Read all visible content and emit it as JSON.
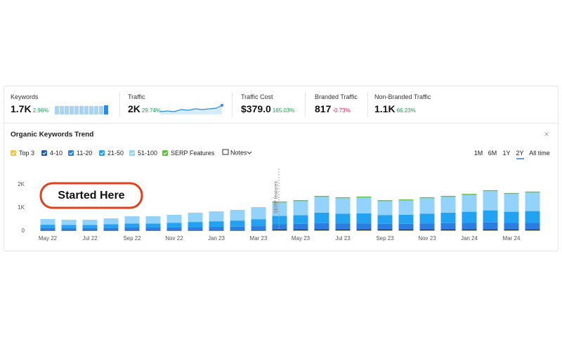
{
  "metrics": [
    {
      "label": "Keywords",
      "value": "1.7K",
      "change": "2.96%"
    },
    {
      "label": "Traffic",
      "value": "2K",
      "change": "29.74%"
    },
    {
      "label": "Traffic Cost",
      "value": "$379.0",
      "change": "165.03%"
    },
    {
      "label": "Branded Traffic",
      "value": "817",
      "change": "-0.73%"
    },
    {
      "label": "Non-Branded Traffic",
      "value": "1.1K",
      "change": "66.23%"
    }
  ],
  "notes_button": "Notes",
  "close": "×",
  "ranges": [
    "1M",
    "6M",
    "1Y",
    "2Y",
    "All time"
  ],
  "chart_data": {
    "type": "bar",
    "stacked": true,
    "title": "Organic Keywords Trend",
    "annotations": [
      "Started Here",
      "SERP features"
    ],
    "categories": [
      "May 22",
      null,
      "Jul 22",
      null,
      "Sep 22",
      null,
      "Nov 22",
      null,
      "Jan 23",
      null,
      "Mar 23",
      null,
      "May 23",
      null,
      "Jul 23",
      null,
      "Sep 23",
      null,
      "Nov 23",
      null,
      "Jan 24",
      null,
      "Mar 24",
      null
    ],
    "series": [
      {
        "name": "Top 3",
        "color": "#f3c344",
        "values": [
          10,
          10,
          10,
          10,
          10,
          10,
          10,
          10,
          10,
          10,
          10,
          20,
          20,
          20,
          20,
          20,
          20,
          20,
          20,
          20,
          20,
          20,
          20,
          20
        ]
      },
      {
        "name": "4-10",
        "color": "#1b57b5",
        "values": [
          40,
          40,
          40,
          40,
          40,
          40,
          40,
          40,
          40,
          40,
          40,
          80,
          80,
          80,
          80,
          80,
          80,
          80,
          80,
          80,
          80,
          80,
          80,
          80
        ]
      },
      {
        "name": "11-20",
        "color": "#2a7de1",
        "values": [
          80,
          80,
          80,
          90,
          100,
          100,
          110,
          120,
          130,
          140,
          160,
          200,
          210,
          240,
          230,
          230,
          210,
          210,
          230,
          240,
          250,
          270,
          250,
          260
        ]
      },
      {
        "name": "21-50",
        "color": "#23a2f2",
        "values": [
          140,
          130,
          130,
          150,
          170,
          170,
          190,
          220,
          240,
          260,
          300,
          350,
          370,
          450,
          420,
          430,
          380,
          390,
          420,
          450,
          480,
          520,
          480,
          500
        ]
      },
      {
        "name": "51-100",
        "color": "#92d2fb",
        "values": [
          245,
          225,
          225,
          255,
          315,
          315,
          350,
          400,
          430,
          460,
          520,
          580,
          610,
          685,
          665,
          685,
          600,
          620,
          665,
          685,
          730,
          830,
          770,
          800
        ]
      },
      {
        "name": "SERP Features",
        "color": "#5cbf3a",
        "values": [
          0,
          0,
          0,
          0,
          0,
          0,
          0,
          0,
          0,
          0,
          0,
          40,
          40,
          40,
          40,
          40,
          40,
          40,
          40,
          40,
          40,
          40,
          40,
          40
        ]
      }
    ],
    "ylim": [
      0,
      2800
    ],
    "yticks": [
      0,
      {
        "value": 1000,
        "label": "1K"
      },
      {
        "value": 2000,
        "label": "2K"
      }
    ],
    "grid": false
  }
}
